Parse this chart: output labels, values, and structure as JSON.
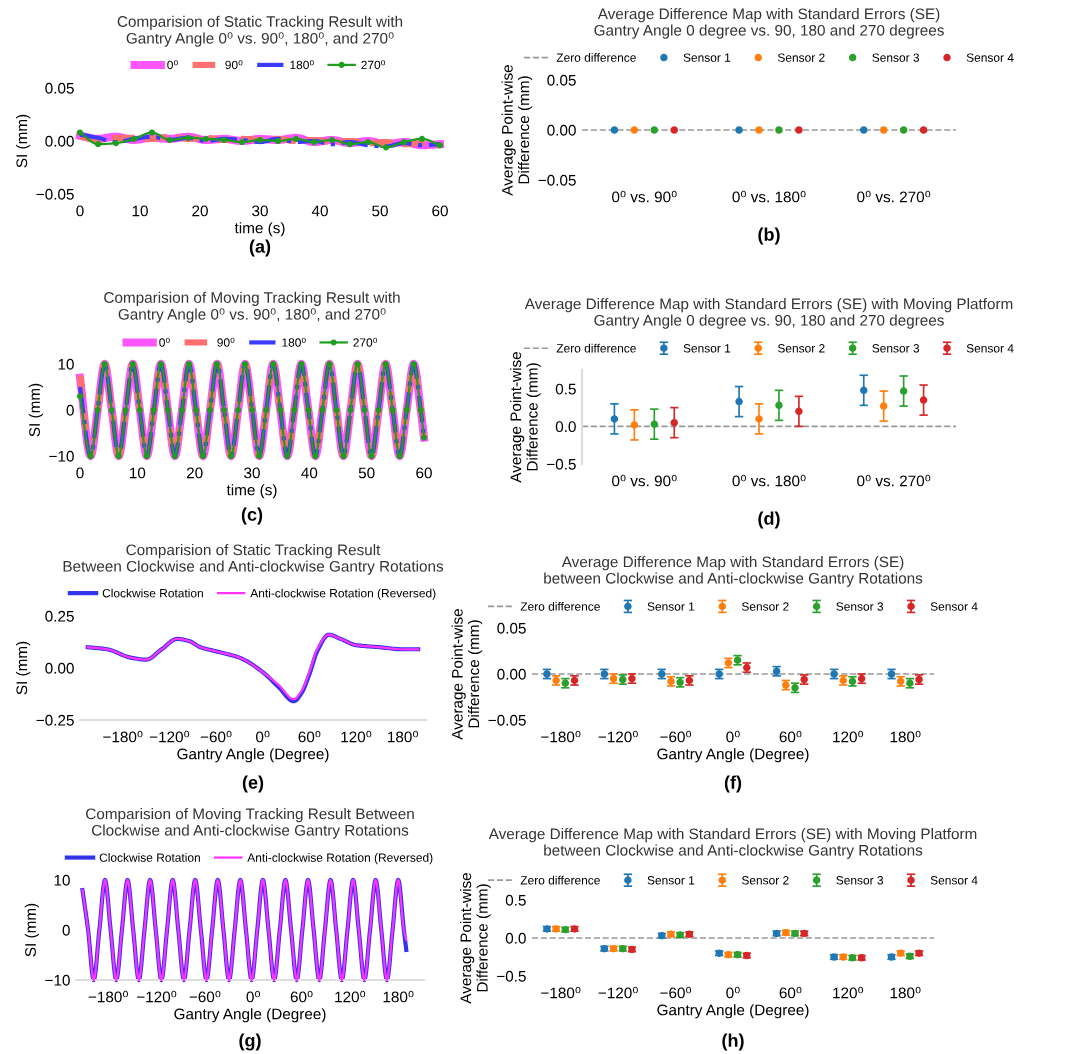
{
  "chart_data": [
    {
      "type": "line",
      "title": "Comparision of Static Tracking Result with\nGantry Angle 0⁰ vs. 90⁰, 180⁰, and 270⁰",
      "xlabel": "time (s)",
      "ylabel": "SI (mm)",
      "annotations": [
        "(a)"
      ],
      "legend": "top",
      "x": [
        0,
        3,
        6,
        9,
        12,
        15,
        18,
        21,
        24,
        27,
        30,
        33,
        36,
        39,
        42,
        45,
        48,
        51,
        54,
        57,
        60
      ],
      "xlim": [
        0,
        60
      ],
      "xticks": [
        0,
        10,
        20,
        30,
        40,
        50,
        60
      ],
      "ylim": [
        -0.05,
        0.05
      ],
      "yticks": [
        {
          "value": -0.05,
          "label": "−0.05"
        },
        {
          "value": 0,
          "label": "0.00"
        },
        {
          "value": 0.05,
          "label": "0.05"
        }
      ],
      "series": [
        {
          "name": "0⁰",
          "color": "#ff55ff",
          "line_style": "solid",
          "values": [
            0.005,
            0.002,
            0.004,
            0.001,
            0.003,
            0.002,
            0.004,
            0.001,
            0.002,
            0.0,
            0.002,
            0.001,
            0.003,
            -0.001,
            0.001,
            -0.002,
            0.0,
            -0.003,
            -0.001,
            -0.004,
            -0.003
          ]
        },
        {
          "name": "90⁰",
          "color": "#ff6f6f",
          "line_style": "dashed",
          "values": [
            0.004,
            0.001,
            0.003,
            0.003,
            0.002,
            0.004,
            0.002,
            0.003,
            0.001,
            0.002,
            0.001,
            0.002,
            0.0,
            0.001,
            -0.001,
            0.0,
            -0.002,
            -0.001,
            -0.003,
            -0.002,
            -0.004
          ]
        },
        {
          "name": "180⁰",
          "color": "#3b3bff",
          "line_style": "dashdot",
          "values": [
            0.006,
            0.003,
            -0.001,
            0.002,
            0.004,
            0.001,
            0.003,
            0.0,
            0.002,
            0.001,
            -0.001,
            0.002,
            -0.001,
            0.0,
            -0.003,
            -0.001,
            -0.004,
            -0.005,
            -0.002,
            -0.004,
            -0.003
          ]
        },
        {
          "name": "270⁰",
          "color": "#1e9e1e",
          "line_style": "solid",
          "marker": "circle",
          "values": [
            0.008,
            -0.003,
            -0.002,
            0.002,
            0.008,
            0.001,
            0.003,
            0.002,
            0.001,
            -0.001,
            0.001,
            0.0,
            0.002,
            -0.001,
            0.001,
            -0.003,
            -0.001,
            -0.006,
            -0.001,
            0.002,
            -0.004
          ]
        }
      ]
    },
    {
      "type": "scatter",
      "title": "Average Difference Map with Standard Errors (SE)\nGantry Angle 0 degree vs. 90, 180 and 270 degrees",
      "ylabel": "Average Point-wise\nDifference (mm)",
      "annotations": [
        "(b)"
      ],
      "legend": "top",
      "categories": [
        "0⁰ vs. 90⁰",
        "0⁰ vs. 180⁰",
        "0⁰ vs. 270⁰"
      ],
      "ylim": [
        -0.05,
        0.05
      ],
      "yticks": [
        {
          "value": -0.05,
          "label": "−0.05"
        },
        {
          "value": 0,
          "label": "0.00"
        },
        {
          "value": 0.05,
          "label": "0.05"
        }
      ],
      "ref_lines": [
        {
          "axis": "y",
          "value": 0,
          "label": "Zero difference",
          "color": "#999999",
          "line_style": "dashed"
        }
      ],
      "series": [
        {
          "name": "Sensor 1",
          "color": "#1f77b4",
          "values": [
            0,
            0,
            0
          ]
        },
        {
          "name": "Sensor 2",
          "color": "#ff7f0e",
          "values": [
            0,
            0,
            0
          ]
        },
        {
          "name": "Sensor 3",
          "color": "#2ca02c",
          "values": [
            0,
            0,
            0
          ]
        },
        {
          "name": "Sensor 4",
          "color": "#d62728",
          "values": [
            0,
            0,
            0
          ]
        }
      ]
    },
    {
      "type": "line",
      "title": "Comparision of Moving Tracking Result with\nGantry Angle 0⁰ vs. 90⁰, 180⁰, and 270⁰",
      "xlabel": "time (s)",
      "ylabel": "SI (mm)",
      "annotations": [
        "(c)"
      ],
      "legend": "top",
      "x": [
        0,
        1.85,
        3.08,
        4.3,
        5.53,
        6.75,
        7.98,
        9.2,
        10.43,
        11.65,
        12.88,
        14.1,
        15.33,
        16.55,
        17.78,
        19,
        20.23,
        21.45,
        22.68,
        23.9,
        25.13,
        26.35,
        27.58,
        28.8,
        30.03,
        31.25,
        32.48,
        33.7,
        34.93,
        36.15,
        37.38,
        38.6,
        39.83,
        41.05,
        42.28,
        43.5,
        44.73,
        45.95,
        47.18,
        48.4,
        49.63,
        50.85,
        52.08,
        53.3,
        54.53,
        55.75,
        56.98,
        58.2,
        59.43,
        60
      ],
      "xlim": [
        0,
        60
      ],
      "xticks": [
        0,
        10,
        20,
        30,
        40,
        50,
        60
      ],
      "ylim": [
        -10,
        10
      ],
      "yticks": [
        {
          "value": -10,
          "label": "−10"
        },
        0,
        10
      ],
      "series": [
        {
          "name": "0⁰",
          "color": "#ff55ff",
          "line_style": "solid",
          "values": [
            7,
            -10,
            0,
            10,
            0,
            -10,
            0,
            10,
            0,
            -10,
            0,
            10,
            0,
            -10,
            0,
            10,
            0,
            -10,
            0,
            10,
            0,
            -10,
            0,
            10,
            0,
            -10,
            0,
            10,
            0,
            -10,
            0,
            10,
            0,
            -10,
            0,
            10,
            0,
            -10,
            0,
            10,
            0,
            -10,
            0,
            10,
            0,
            -10,
            0,
            10,
            0,
            -6
          ]
        },
        {
          "name": "90⁰",
          "color": "#ff6f6f",
          "line_style": "dashed",
          "values": [
            7.5,
            -10,
            0,
            10,
            0,
            -10,
            0,
            10,
            0,
            -10,
            0,
            10,
            0,
            -10,
            0,
            10,
            0,
            -10,
            0,
            10,
            0,
            -10,
            0,
            10,
            0,
            -10,
            0,
            10,
            0,
            -10,
            0,
            10,
            0,
            -10,
            0,
            10,
            0,
            -10,
            0,
            10,
            0,
            -10,
            0,
            10,
            0,
            -10,
            0,
            10,
            0,
            -6
          ]
        },
        {
          "name": "180⁰",
          "color": "#3b3bff",
          "line_style": "dashdot",
          "values": [
            5,
            -10,
            0,
            10,
            0,
            -10,
            0,
            10,
            0,
            -10,
            0,
            10,
            0,
            -10,
            0,
            10,
            0,
            -10,
            0,
            10,
            0,
            -10,
            0,
            10,
            0,
            -10,
            0,
            10,
            0,
            -10,
            0,
            10,
            0,
            -10,
            0,
            10,
            0,
            -10,
            0,
            10,
            0,
            -10,
            0,
            10,
            0,
            -10,
            0,
            10,
            0,
            -6
          ]
        },
        {
          "name": "270⁰",
          "color": "#1e9e1e",
          "line_style": "solid",
          "marker": "circle",
          "values": [
            3,
            -10,
            0,
            10,
            0,
            -10,
            0,
            10,
            0,
            -10,
            0,
            10,
            0,
            -10,
            0,
            10,
            0,
            -10,
            0,
            10,
            0,
            -10,
            0,
            10,
            0,
            -10,
            0,
            10,
            0,
            -10,
            0,
            10,
            0,
            -10,
            0,
            10,
            0,
            -10,
            0,
            10,
            0,
            -10,
            0,
            10,
            0,
            -10,
            0,
            10,
            0,
            -6
          ]
        }
      ]
    },
    {
      "type": "scatter",
      "title": "Average Difference Map with Standard Errors (SE) with Moving Platform\nGantry Angle 0 degree vs. 90, 180 and 270 degrees",
      "ylabel": "Average Point-wise\nDifference (mm)",
      "annotations": [
        "(d)"
      ],
      "legend": "top",
      "categories": [
        "0⁰ vs. 90⁰",
        "0⁰ vs. 180⁰",
        "0⁰ vs. 270⁰"
      ],
      "ylim": [
        -0.5,
        0.75
      ],
      "yticks": [
        {
          "value": -0.5,
          "label": "−0.5"
        },
        {
          "value": 0,
          "label": "0.0"
        },
        0.5
      ],
      "ref_lines": [
        {
          "axis": "y",
          "value": 0,
          "label": "Zero difference",
          "color": "#999999",
          "line_style": "dashed"
        }
      ],
      "series": [
        {
          "name": "Sensor 1",
          "color": "#1f77b4",
          "values": [
            0.1,
            0.33,
            0.48
          ],
          "errors": [
            0.2,
            0.2,
            0.2
          ]
        },
        {
          "name": "Sensor 2",
          "color": "#ff7f0e",
          "values": [
            0.02,
            0.1,
            0.27
          ],
          "errors": [
            0.2,
            0.2,
            0.2
          ]
        },
        {
          "name": "Sensor 3",
          "color": "#2ca02c",
          "values": [
            0.03,
            0.28,
            0.47
          ],
          "errors": [
            0.2,
            0.2,
            0.2
          ]
        },
        {
          "name": "Sensor 4",
          "color": "#d62728",
          "values": [
            0.05,
            0.2,
            0.35
          ],
          "errors": [
            0.2,
            0.2,
            0.2
          ]
        }
      ]
    },
    {
      "type": "line",
      "title": "Comparision of Static Tracking Result\nBetween Clockwise and Anti-clockwise Gantry Rotations",
      "xlabel": "Gantry Angle (Degree)",
      "ylabel": "SI (mm)",
      "annotations": [
        "(e)"
      ],
      "legend": "top",
      "x": [
        -225,
        -200,
        -170,
        -150,
        -130,
        -110,
        -95,
        -80,
        -60,
        -30,
        0,
        20,
        40,
        50,
        60,
        70,
        85,
        100,
        120,
        150,
        180,
        200
      ],
      "xlim": [
        -235,
        210
      ],
      "xticks": [
        {
          "value": -180,
          "label": "−180⁰"
        },
        {
          "value": -120,
          "label": "−120⁰"
        },
        {
          "value": -60,
          "label": "−60⁰"
        },
        {
          "value": 0,
          "label": "0⁰"
        },
        {
          "value": 60,
          "label": "60⁰"
        },
        {
          "value": 120,
          "label": "120⁰"
        },
        {
          "value": 180,
          "label": "180⁰"
        }
      ],
      "ylim": [
        -0.25,
        0.25
      ],
      "yticks": [
        {
          "value": -0.25,
          "label": "−0.25"
        },
        {
          "value": 0,
          "label": "0.00"
        },
        {
          "value": 0.25,
          "label": "0.25"
        }
      ],
      "series": [
        {
          "name": "Clockwise Rotation",
          "color": "#3333ee",
          "values": [
            0.1,
            0.09,
            0.05,
            0.04,
            0.09,
            0.14,
            0.13,
            0.1,
            0.08,
            0.05,
            -0.02,
            -0.09,
            -0.16,
            -0.12,
            -0.03,
            0.08,
            0.16,
            0.14,
            0.11,
            0.1,
            0.09,
            0.09
          ]
        },
        {
          "name": "Anti-clockwise Rotation (Reversed)",
          "color": "#ff33ff",
          "values": [
            0.1,
            0.09,
            0.05,
            0.04,
            0.09,
            0.14,
            0.13,
            0.1,
            0.08,
            0.05,
            -0.02,
            -0.08,
            -0.15,
            -0.11,
            -0.02,
            0.09,
            0.16,
            0.14,
            0.11,
            0.1,
            0.09,
            0.09
          ]
        }
      ]
    },
    {
      "type": "scatter",
      "title": "Average Difference Map with Standard Errors (SE)\nbetween Clockwise and Anti-clockwise Gantry Rotations",
      "xlabel": "Gantry Angle (Degree)",
      "ylabel": "Average Point-wise\nDifference (mm)",
      "annotations": [
        "(f)"
      ],
      "legend": "top",
      "categories": [
        "−180⁰",
        "−120⁰",
        "−60⁰",
        "0⁰",
        "60⁰",
        "120⁰",
        "180⁰"
      ],
      "ylim": [
        -0.05,
        0.05
      ],
      "yticks": [
        {
          "value": -0.05,
          "label": "−0.05"
        },
        {
          "value": 0,
          "label": "0.00"
        },
        {
          "value": 0.05,
          "label": "0.05"
        }
      ],
      "ref_lines": [
        {
          "axis": "y",
          "value": 0,
          "label": "Zero difference",
          "color": "#999999",
          "line_style": "dashed"
        }
      ],
      "series": [
        {
          "name": "Sensor 1",
          "color": "#1f77b4",
          "values": [
            0,
            0,
            0,
            0,
            0.003,
            0,
            0
          ],
          "errors": [
            0.005,
            0.005,
            0.005,
            0.005,
            0.005,
            0.005,
            0.005
          ]
        },
        {
          "name": "Sensor 2",
          "color": "#ff7f0e",
          "values": [
            -0.007,
            -0.005,
            -0.008,
            0.012,
            -0.012,
            -0.007,
            -0.008
          ],
          "errors": [
            0.005,
            0.005,
            0.005,
            0.005,
            0.005,
            0.005,
            0.005
          ]
        },
        {
          "name": "Sensor 3",
          "color": "#2ca02c",
          "values": [
            -0.01,
            -0.006,
            -0.009,
            0.015,
            -0.015,
            -0.008,
            -0.01
          ],
          "errors": [
            0.005,
            0.005,
            0.005,
            0.005,
            0.005,
            0.005,
            0.005
          ]
        },
        {
          "name": "Sensor 4",
          "color": "#d62728",
          "values": [
            -0.007,
            -0.005,
            -0.007,
            0.007,
            -0.006,
            -0.005,
            -0.006
          ],
          "errors": [
            0.005,
            0.005,
            0.005,
            0.005,
            0.005,
            0.005,
            0.005
          ]
        }
      ]
    },
    {
      "type": "line",
      "title": "Comparision of Moving Tracking Result Between\nClockwise and Anti-clockwise Gantry Rotations",
      "xlabel": "Gantry Angle (Degree)",
      "ylabel": "SI (mm)",
      "annotations": [
        "(g)"
      ],
      "legend": "top",
      "x": [
        -212,
        -205,
        -198,
        -191,
        -184,
        -177,
        -170,
        -163,
        -156,
        -149,
        -142,
        -135,
        -128,
        -121,
        -114,
        -107,
        -100,
        -93,
        -86,
        -79,
        -72,
        -65,
        -58,
        -51,
        -44,
        -37,
        -30,
        -23,
        -16,
        -9,
        -2,
        5,
        12,
        19,
        26,
        33,
        40,
        47,
        54,
        61,
        68,
        75,
        82,
        89,
        96,
        103,
        110,
        117,
        124,
        131,
        138,
        145,
        152,
        159,
        166,
        173,
        180,
        187,
        190
      ],
      "xlim": [
        -220,
        212
      ],
      "xticks": [
        {
          "value": -180,
          "label": "−180⁰"
        },
        {
          "value": -120,
          "label": "−120⁰"
        },
        {
          "value": -60,
          "label": "−60⁰"
        },
        {
          "value": 0,
          "label": "0⁰"
        },
        {
          "value": 60,
          "label": "60⁰"
        },
        {
          "value": 120,
          "label": "120⁰"
        },
        {
          "value": 180,
          "label": "180⁰"
        }
      ],
      "ylim": [
        -10,
        10
      ],
      "yticks": [
        {
          "value": -10,
          "label": "−10"
        },
        0,
        10
      ],
      "series": [
        {
          "name": "Clockwise Rotation",
          "color": "#3333ee",
          "values": [
            8,
            0,
            -10,
            0,
            10,
            0,
            -10,
            0,
            10,
            0,
            -10,
            0,
            10,
            0,
            -10,
            0,
            10,
            0,
            -10,
            0,
            10,
            0,
            -10,
            0,
            10,
            0,
            -10,
            0,
            10,
            0,
            -10,
            0,
            10,
            0,
            -10,
            0,
            10,
            0,
            -10,
            0,
            10,
            0,
            -10,
            0,
            10,
            0,
            -10,
            0,
            10,
            0,
            -10,
            0,
            10,
            0,
            -10,
            0,
            10,
            0,
            -4
          ]
        },
        {
          "name": "Anti-clockwise Rotation (Reversed)",
          "color": "#ff33ff",
          "values": [
            8,
            0,
            -10,
            0,
            10,
            0,
            -10,
            0,
            10,
            0,
            -10,
            0,
            10,
            0,
            -10,
            0,
            10,
            0,
            -10,
            0,
            10,
            0,
            -10,
            0,
            10,
            0,
            -10,
            0,
            10,
            0,
            -10,
            0,
            10,
            0,
            -10,
            0,
            10,
            0,
            -10,
            0,
            10,
            0,
            -10,
            0,
            10,
            0,
            -10,
            0,
            10,
            0,
            -10,
            0,
            10,
            0,
            -10,
            0,
            10,
            0,
            -2
          ]
        }
      ]
    },
    {
      "type": "scatter",
      "title": "Average Difference Map with Standard Errors (SE) with Moving Platform\nbetween Clockwise and Anti-clockwise Gantry Rotations",
      "xlabel": "Gantry Angle (Degree)",
      "ylabel": "Average Point-wise\nDifference (mm)",
      "annotations": [
        "(h)"
      ],
      "legend": "top",
      "categories": [
        "−180⁰",
        "−120⁰",
        "−60⁰",
        "0⁰",
        "60⁰",
        "120⁰",
        "180⁰"
      ],
      "ylim": [
        -0.5,
        0.5
      ],
      "yticks": [
        {
          "value": -0.5,
          "label": "−0.5"
        },
        {
          "value": 0,
          "label": "0.0"
        },
        0.5
      ],
      "ref_lines": [
        {
          "axis": "y",
          "value": 0,
          "label": "Zero difference",
          "color": "#999999",
          "line_style": "dashed"
        }
      ],
      "series": [
        {
          "name": "Sensor 1",
          "color": "#1f77b4",
          "values": [
            0.12,
            -0.14,
            0.03,
            -0.2,
            0.06,
            -0.25,
            -0.25
          ],
          "errors": [
            0.03,
            0.03,
            0.03,
            0.03,
            0.03,
            0.03,
            0.03
          ]
        },
        {
          "name": "Sensor 2",
          "color": "#ff7f0e",
          "values": [
            0.12,
            -0.14,
            0.05,
            -0.22,
            0.07,
            -0.25,
            -0.2
          ],
          "errors": [
            0.03,
            0.03,
            0.03,
            0.03,
            0.03,
            0.03,
            0.03
          ]
        },
        {
          "name": "Sensor 3",
          "color": "#2ca02c",
          "values": [
            0.11,
            -0.14,
            0.04,
            -0.22,
            0.06,
            -0.26,
            -0.24
          ],
          "errors": [
            0.03,
            0.03,
            0.03,
            0.03,
            0.03,
            0.03,
            0.03
          ]
        },
        {
          "name": "Sensor 4",
          "color": "#d62728",
          "values": [
            0.12,
            -0.15,
            0.05,
            -0.23,
            0.06,
            -0.26,
            -0.2
          ],
          "errors": [
            0.03,
            0.03,
            0.03,
            0.03,
            0.03,
            0.03,
            0.03
          ]
        }
      ]
    }
  ]
}
